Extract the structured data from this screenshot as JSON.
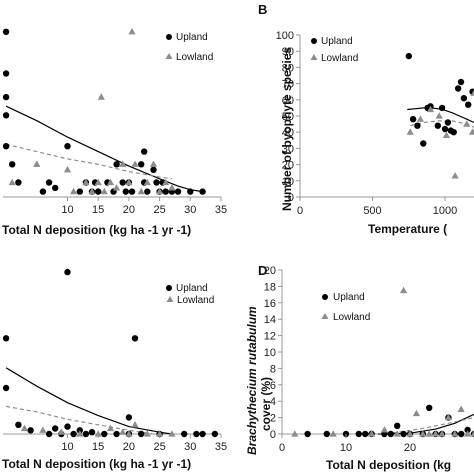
{
  "colors": {
    "upland": "#000000",
    "lowland": "#8c8c8c",
    "axis": "#999999"
  },
  "chart_data": [
    {
      "panel": "",
      "type": "scatter",
      "xlabel": "Total N deposition (kg ha -1 yr -1)",
      "ylabel": "",
      "xlim": [
        -0.5,
        35
      ],
      "ylim": [
        -3,
        100
      ],
      "xticks": [
        10,
        15,
        20,
        25,
        30,
        35
      ],
      "yticks": [],
      "legend": "top-right",
      "series": [
        {
          "name": "Upland",
          "marker": "circle",
          "points": [
            [
              0,
              88
            ],
            [
              0,
              65
            ],
            [
              0,
              52
            ],
            [
              0,
              42
            ],
            [
              0,
              25
            ],
            [
              1,
              15
            ],
            [
              2,
              5
            ],
            [
              6,
              0
            ],
            [
              7,
              5
            ],
            [
              8,
              2
            ],
            [
              10,
              25
            ],
            [
              12,
              0
            ],
            [
              13,
              5
            ],
            [
              14,
              0
            ],
            [
              14.5,
              5
            ],
            [
              15,
              0
            ],
            [
              16.5,
              5
            ],
            [
              17.5,
              0
            ],
            [
              18,
              15
            ],
            [
              19,
              5
            ],
            [
              19.5,
              0
            ],
            [
              20,
              5
            ],
            [
              20.5,
              0
            ],
            [
              22,
              15
            ],
            [
              22.5,
              22
            ],
            [
              22.5,
              5
            ],
            [
              23,
              0
            ],
            [
              24,
              12
            ],
            [
              24.5,
              5
            ],
            [
              25,
              0
            ],
            [
              25.5,
              5
            ],
            [
              26,
              0
            ],
            [
              27,
              0
            ],
            [
              28,
              0
            ],
            [
              30,
              0
            ],
            [
              32,
              0
            ]
          ],
          "fit": [
            [
              0,
              47
            ],
            [
              5,
              39
            ],
            [
              10,
              30
            ],
            [
              15,
              22
            ],
            [
              20,
              14
            ],
            [
              25,
              7
            ],
            [
              28,
              3
            ],
            [
              30,
              1
            ],
            [
              32,
              0
            ]
          ]
        },
        {
          "name": "Lowland",
          "marker": "triangle",
          "points": [
            [
              1,
              5
            ],
            [
              5,
              15
            ],
            [
              10,
              12
            ],
            [
              11,
              0
            ],
            [
              13,
              5
            ],
            [
              14,
              0
            ],
            [
              15,
              5
            ],
            [
              15.5,
              52
            ],
            [
              16,
              0
            ],
            [
              17,
              5
            ],
            [
              18,
              2
            ],
            [
              19,
              15
            ],
            [
              20,
              5
            ],
            [
              20.5,
              88
            ],
            [
              21,
              15
            ],
            [
              22,
              0
            ],
            [
              23,
              5
            ],
            [
              24,
              15
            ],
            [
              25,
              0
            ],
            [
              26,
              5
            ],
            [
              27,
              2
            ]
          ],
          "fit": [
            [
              0,
              26
            ],
            [
              10,
              18
            ],
            [
              15,
              15
            ],
            [
              20,
              11
            ],
            [
              25,
              8
            ],
            [
              27,
              7
            ]
          ]
        }
      ]
    },
    {
      "panel": "B",
      "type": "scatter",
      "xlabel": "Temperature (",
      "ylabel": "Number of byophyte species",
      "xlim": [
        0,
        1200
      ],
      "ylim": [
        0,
        100
      ],
      "xticks": [
        0,
        500,
        1000
      ],
      "xtick_labels": [
        "0",
        "500",
        "1000"
      ],
      "yticks": [
        0,
        10,
        20,
        30,
        40,
        50,
        60,
        70,
        80,
        90,
        100
      ],
      "legend": "top-left",
      "series": [
        {
          "name": "Upland",
          "marker": "circle",
          "points": [
            [
              750,
              87
            ],
            [
              780,
              48
            ],
            [
              810,
              44
            ],
            [
              850,
              33
            ],
            [
              880,
              55
            ],
            [
              900,
              56
            ],
            [
              950,
              44
            ],
            [
              980,
              55
            ],
            [
              1000,
              42
            ],
            [
              1020,
              46
            ],
            [
              1040,
              41
            ],
            [
              1060,
              40
            ],
            [
              1090,
              67
            ],
            [
              1110,
              71
            ],
            [
              1130,
              61
            ],
            [
              1160,
              57
            ],
            [
              1190,
              65
            ]
          ],
          "fit": [
            [
              740,
              54
            ],
            [
              800,
              54.5
            ],
            [
              850,
              55
            ],
            [
              900,
              55
            ],
            [
              950,
              54.5
            ],
            [
              1000,
              53.5
            ],
            [
              1050,
              52
            ],
            [
              1100,
              50
            ],
            [
              1150,
              48
            ],
            [
              1200,
              46
            ]
          ]
        },
        {
          "name": "Lowland",
          "marker": "triangle",
          "points": [
            [
              760,
              40
            ],
            [
              830,
              48
            ],
            [
              900,
              54
            ],
            [
              960,
              50
            ],
            [
              1010,
              38
            ],
            [
              1070,
              13
            ],
            [
              1150,
              45
            ],
            [
              1190,
              40
            ],
            [
              1200,
              64
            ]
          ],
          "fit": [
            [
              760,
              44
            ],
            [
              850,
              46
            ],
            [
              950,
              47
            ],
            [
              1050,
              47
            ],
            [
              1150,
              45
            ],
            [
              1200,
              43
            ]
          ]
        }
      ]
    },
    {
      "panel": "",
      "type": "scatter",
      "xlabel": "Total N deposition (kg ha -1 yr -1)",
      "ylabel": "",
      "xlim": [
        -0.5,
        35
      ],
      "ylim": [
        0,
        100
      ],
      "xticks": [
        10,
        15,
        20,
        25,
        30,
        35
      ],
      "yticks": [],
      "legend": "top-right",
      "series": [
        {
          "name": "Upland",
          "marker": "circle",
          "points": [
            [
              10,
              88
            ],
            [
              0,
              52
            ],
            [
              21,
              52
            ],
            [
              20,
              9
            ],
            [
              0,
              25
            ],
            [
              2,
              5
            ],
            [
              4,
              2
            ],
            [
              7,
              0
            ],
            [
              8,
              3
            ],
            [
              9,
              0
            ],
            [
              10,
              4
            ],
            [
              11,
              0
            ],
            [
              12,
              2
            ],
            [
              13,
              0
            ],
            [
              14,
              1
            ],
            [
              16,
              0
            ],
            [
              18,
              0
            ],
            [
              20,
              0
            ],
            [
              22,
              0
            ],
            [
              25,
              0
            ],
            [
              29,
              0
            ],
            [
              31,
              0
            ],
            [
              32,
              0
            ],
            [
              34,
              0
            ]
          ],
          "fit": [
            [
              0,
              36
            ],
            [
              5,
              26
            ],
            [
              10,
              17
            ],
            [
              15,
              10
            ],
            [
              20,
              4
            ],
            [
              25,
              1
            ],
            [
              27,
              0
            ]
          ]
        },
        {
          "name": "Lowland",
          "marker": "triangle",
          "points": [
            [
              3,
              3
            ],
            [
              6,
              2
            ],
            [
              9,
              1
            ],
            [
              12,
              0
            ],
            [
              15,
              0
            ],
            [
              17,
              3
            ],
            [
              19,
              1
            ],
            [
              20,
              0
            ],
            [
              21,
              5
            ],
            [
              23,
              0
            ],
            [
              25,
              0
            ],
            [
              27,
              0
            ]
          ],
          "fit": [
            [
              0,
              15
            ],
            [
              5,
              12
            ],
            [
              10,
              8
            ],
            [
              15,
              5
            ],
            [
              20,
              2
            ],
            [
              24,
              0
            ]
          ]
        }
      ]
    },
    {
      "panel": "D",
      "type": "scatter",
      "xlabel": "Total N deposition (kg",
      "ylabel": "Brachythecium rutabulum cover (%)",
      "xlim": [
        0,
        30
      ],
      "ylim": [
        0,
        20
      ],
      "xticks": [
        0,
        10,
        20
      ],
      "xtick_labels": [
        "0",
        "10",
        "20"
      ],
      "yticks": [
        0,
        2,
        4,
        6,
        8,
        10,
        12,
        14,
        16,
        18,
        20
      ],
      "legend": "top-left",
      "series": [
        {
          "name": "Upland",
          "marker": "circle",
          "points": [
            [
              4,
              0
            ],
            [
              7,
              0
            ],
            [
              10,
              0
            ],
            [
              12,
              0
            ],
            [
              13,
              0
            ],
            [
              14,
              0
            ],
            [
              16,
              0
            ],
            [
              17,
              0
            ],
            [
              18,
              1
            ],
            [
              19,
              0
            ],
            [
              20,
              0
            ],
            [
              22,
              0
            ],
            [
              23,
              3.2
            ],
            [
              24,
              0
            ],
            [
              25,
              0
            ],
            [
              26,
              2
            ],
            [
              27,
              0
            ],
            [
              28,
              0
            ],
            [
              29,
              0.5
            ],
            [
              30,
              0
            ]
          ],
          "fit": [
            [
              15,
              0
            ],
            [
              20,
              0.1
            ],
            [
              24,
              0.6
            ],
            [
              27,
              1.3
            ],
            [
              30,
              2.4
            ]
          ]
        },
        {
          "name": "Lowland",
          "marker": "triangle",
          "points": [
            [
              2,
              0
            ],
            [
              8,
              0
            ],
            [
              14,
              0
            ],
            [
              16,
              0.5
            ],
            [
              18,
              0
            ],
            [
              19,
              17.5
            ],
            [
              20,
              0
            ],
            [
              21,
              2.5
            ],
            [
              22,
              0
            ],
            [
              23,
              0
            ],
            [
              24,
              0
            ],
            [
              25,
              0
            ],
            [
              26,
              2
            ],
            [
              27,
              0
            ],
            [
              28,
              3
            ],
            [
              29,
              0
            ],
            [
              30,
              0
            ]
          ],
          "fit": [
            [
              14,
              0
            ],
            [
              18,
              0.2
            ],
            [
              22,
              0.7
            ],
            [
              26,
              1.3
            ],
            [
              30,
              2
            ]
          ]
        }
      ]
    }
  ]
}
